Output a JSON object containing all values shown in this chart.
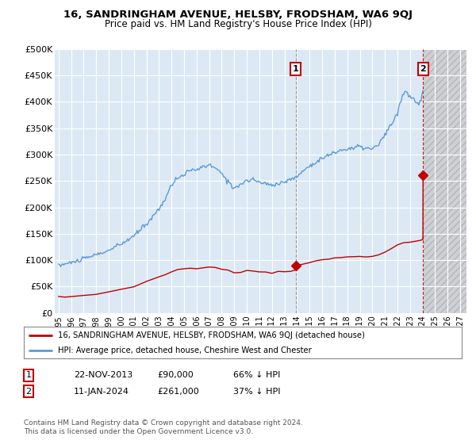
{
  "title": "16, SANDRINGHAM AVENUE, HELSBY, FRODSHAM, WA6 9QJ",
  "subtitle": "Price paid vs. HM Land Registry's House Price Index (HPI)",
  "ylim": [
    0,
    500000
  ],
  "yticks": [
    0,
    50000,
    100000,
    150000,
    200000,
    250000,
    300000,
    350000,
    400000,
    450000,
    500000
  ],
  "ytick_labels": [
    "£0",
    "£50K",
    "£100K",
    "£150K",
    "£200K",
    "£250K",
    "£300K",
    "£350K",
    "£400K",
    "£450K",
    "£500K"
  ],
  "xlim_start": 1994.7,
  "xlim_end": 2027.5,
  "xtick_years": [
    1995,
    1996,
    1997,
    1998,
    1999,
    2000,
    2001,
    2002,
    2003,
    2004,
    2005,
    2006,
    2007,
    2008,
    2009,
    2010,
    2011,
    2012,
    2013,
    2014,
    2015,
    2016,
    2017,
    2018,
    2019,
    2020,
    2021,
    2022,
    2023,
    2024,
    2025,
    2026,
    2027
  ],
  "hpi_color": "#5b9bd5",
  "price_color": "#c00000",
  "marker1_date": 2013.9,
  "marker1_price": 90000,
  "marker2_date": 2024.04,
  "marker2_price": 261000,
  "legend_red_label": "16, SANDRINGHAM AVENUE, HELSBY, FRODSHAM, WA6 9QJ (detached house)",
  "legend_blue_label": "HPI: Average price, detached house, Cheshire West and Chester",
  "table_row1": [
    "1",
    "22-NOV-2013",
    "£90,000",
    "66% ↓ HPI"
  ],
  "table_row2": [
    "2",
    "11-JAN-2024",
    "£261,000",
    "37% ↓ HPI"
  ],
  "footnote1": "Contains HM Land Registry data © Crown copyright and database right 2024.",
  "footnote2": "This data is licensed under the Open Government Licence v3.0.",
  "plot_bg_color": "#dce9f5",
  "grid_color": "#ffffff",
  "hatch_start": 2024.04
}
